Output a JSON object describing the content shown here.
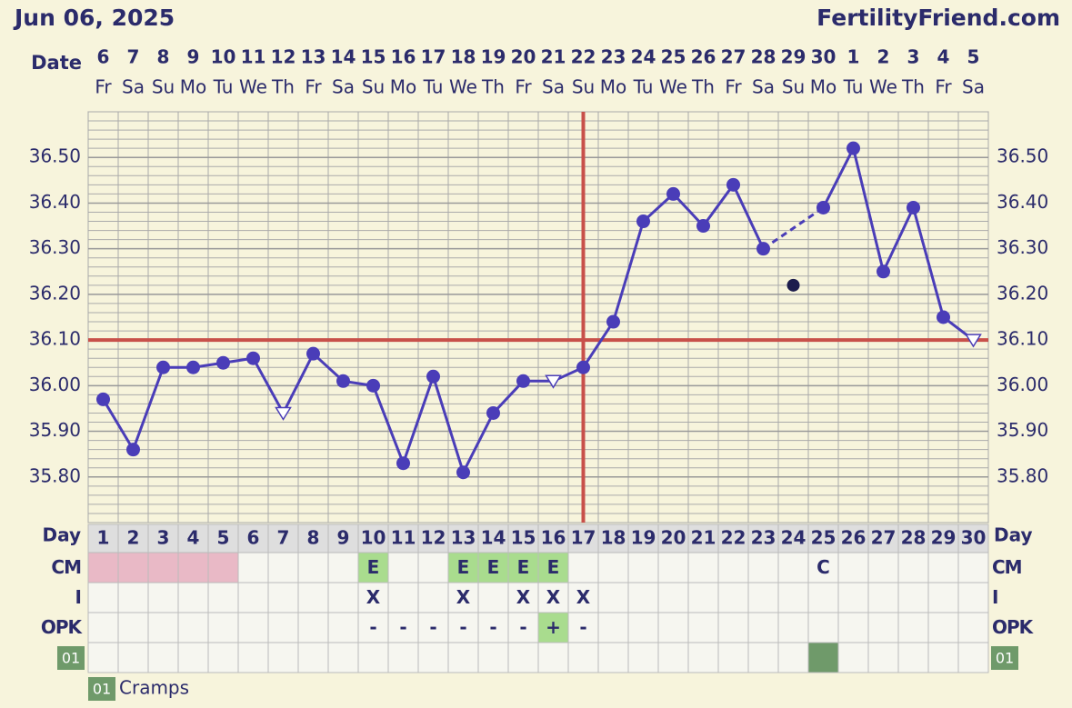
{
  "header": {
    "date": "Jun 06, 2025",
    "site": "FertilityFriend.com"
  },
  "chart_data": {
    "type": "line",
    "date_label": "Date",
    "dates": [
      6,
      7,
      8,
      9,
      10,
      11,
      12,
      13,
      14,
      15,
      16,
      17,
      18,
      19,
      20,
      21,
      22,
      23,
      24,
      25,
      26,
      27,
      28,
      29,
      30,
      1,
      2,
      3,
      4,
      5
    ],
    "weekdays": [
      "Fr",
      "Sa",
      "Su",
      "Mo",
      "Tu",
      "We",
      "Th",
      "Fr",
      "Sa",
      "Su",
      "Mo",
      "Tu",
      "We",
      "Th",
      "Fr",
      "Sa",
      "Su",
      "Mo",
      "Tu",
      "We",
      "Th",
      "Fr",
      "Sa",
      "Su",
      "Mo",
      "Tu",
      "We",
      "Th",
      "Fr",
      "Sa"
    ],
    "day_label": "Day",
    "days": [
      1,
      2,
      3,
      4,
      5,
      6,
      7,
      8,
      9,
      10,
      11,
      12,
      13,
      14,
      15,
      16,
      17,
      18,
      19,
      20,
      21,
      22,
      23,
      24,
      25,
      26,
      27,
      28,
      29,
      30
    ],
    "values": [
      35.97,
      35.86,
      36.04,
      36.04,
      36.05,
      36.06,
      35.94,
      36.07,
      36.01,
      36.0,
      35.83,
      36.02,
      35.81,
      35.94,
      36.01,
      36.01,
      36.04,
      36.14,
      36.36,
      36.42,
      36.35,
      36.44,
      36.3,
      36.22,
      36.39,
      36.52,
      36.25,
      36.39,
      36.15,
      36.1
    ],
    "markers": [
      "circle",
      "circle",
      "circle",
      "circle",
      "circle",
      "circle",
      "triangle",
      "circle",
      "circle",
      "circle",
      "circle",
      "circle",
      "circle",
      "circle",
      "circle",
      "triangle",
      "circle",
      "circle",
      "circle",
      "circle",
      "circle",
      "circle",
      "circle",
      "discarded",
      "circle",
      "circle",
      "circle",
      "circle",
      "circle",
      "triangle"
    ],
    "color": "#4a3db8",
    "ylim": [
      35.7,
      36.6
    ],
    "yticks": [
      {
        "value": 35.8,
        "label": "35.80"
      },
      {
        "value": 35.9,
        "label": "35.90"
      },
      {
        "value": 36.0,
        "label": "36.00"
      },
      {
        "value": 36.1,
        "label": "36.10"
      },
      {
        "value": 36.2,
        "label": "36.20"
      },
      {
        "value": 36.3,
        "label": "36.30"
      },
      {
        "value": 36.4,
        "label": "36.40"
      },
      {
        "value": 36.5,
        "label": "36.50"
      }
    ],
    "minor_grid_step": 0.02,
    "coverline": 36.1,
    "ovulation_day": 17,
    "coverline_color": "#c8504a",
    "rows": [
      {
        "label": "CM",
        "cells": [
          null,
          null,
          null,
          null,
          null,
          null,
          null,
          null,
          null,
          "E",
          null,
          null,
          "E",
          "E",
          "E",
          "E",
          null,
          null,
          null,
          null,
          null,
          null,
          null,
          null,
          "C",
          null,
          null,
          null,
          null,
          null
        ],
        "colors": [
          "#e9b9c6",
          "#e9b9c6",
          "#e9b9c6",
          "#e9b9c6",
          "#e9b9c6",
          null,
          null,
          null,
          null,
          "#a9dc8e",
          null,
          null,
          "#a9dc8e",
          "#a9dc8e",
          "#a9dc8e",
          "#a9dc8e",
          null,
          null,
          null,
          null,
          null,
          null,
          null,
          null,
          null,
          null,
          null,
          null,
          null,
          null
        ]
      },
      {
        "label": "I",
        "cells": [
          null,
          null,
          null,
          null,
          null,
          null,
          null,
          null,
          null,
          "X",
          null,
          null,
          "X",
          null,
          "X",
          "X",
          "X",
          null,
          null,
          null,
          null,
          null,
          null,
          null,
          null,
          null,
          null,
          null,
          null,
          null
        ]
      },
      {
        "label": "OPK",
        "cells": [
          null,
          null,
          null,
          null,
          null,
          null,
          null,
          null,
          null,
          "-",
          "-",
          "-",
          "-",
          "-",
          "-",
          "+",
          "-",
          null,
          null,
          null,
          null,
          null,
          null,
          null,
          null,
          null,
          null,
          null,
          null,
          null
        ],
        "colors": [
          null,
          null,
          null,
          null,
          null,
          null,
          null,
          null,
          null,
          null,
          null,
          null,
          null,
          null,
          null,
          "#a9dc8e",
          null,
          null,
          null,
          null,
          null,
          null,
          null,
          null,
          null,
          null,
          null,
          null,
          null,
          null
        ]
      }
    ],
    "notes": {
      "code": "01",
      "text": "Cramps",
      "days": [
        25
      ],
      "color": "#6f9a6a"
    }
  }
}
